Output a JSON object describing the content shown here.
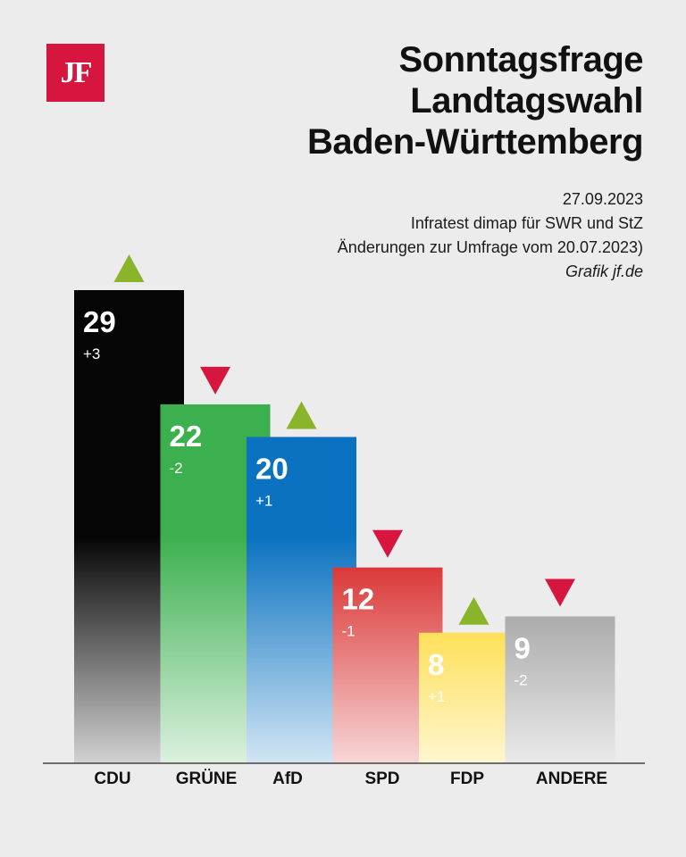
{
  "logo": {
    "text": "JF"
  },
  "header": {
    "title_lines": [
      "Sonntagsfrage",
      "Landtagswahl",
      "Baden-Württemberg"
    ],
    "date": "27.09.2023",
    "source": "Infratest dimap für SWR und StZ",
    "note": "Änderungen zur Umfrage vom 20.07.2023)",
    "credit": "Grafik jf.de"
  },
  "colors": {
    "up": "#8ab52b",
    "down": "#d7163f",
    "background": "#ececec"
  },
  "chart_data": {
    "type": "bar",
    "title": "Sonntagsfrage Landtagswahl Baden-Württemberg",
    "xlabel": "",
    "ylabel": "",
    "ylim": [
      0,
      30
    ],
    "grid": false,
    "categories": [
      "CDU",
      "GRÜNE",
      "AfD",
      "SPD",
      "FDP",
      "ANDERE"
    ],
    "values": [
      29,
      22,
      20,
      12,
      8,
      9
    ],
    "change_labels": [
      "+3",
      "-2",
      "+1",
      "-1",
      "+1",
      "-2"
    ],
    "change_direction": [
      "up",
      "down",
      "up",
      "down",
      "up",
      "down"
    ],
    "bar_colors": [
      "#050505",
      "#3cb04f",
      "#0a72c0",
      "#d5201f",
      "#fccf00",
      "#8a8a8a"
    ]
  }
}
